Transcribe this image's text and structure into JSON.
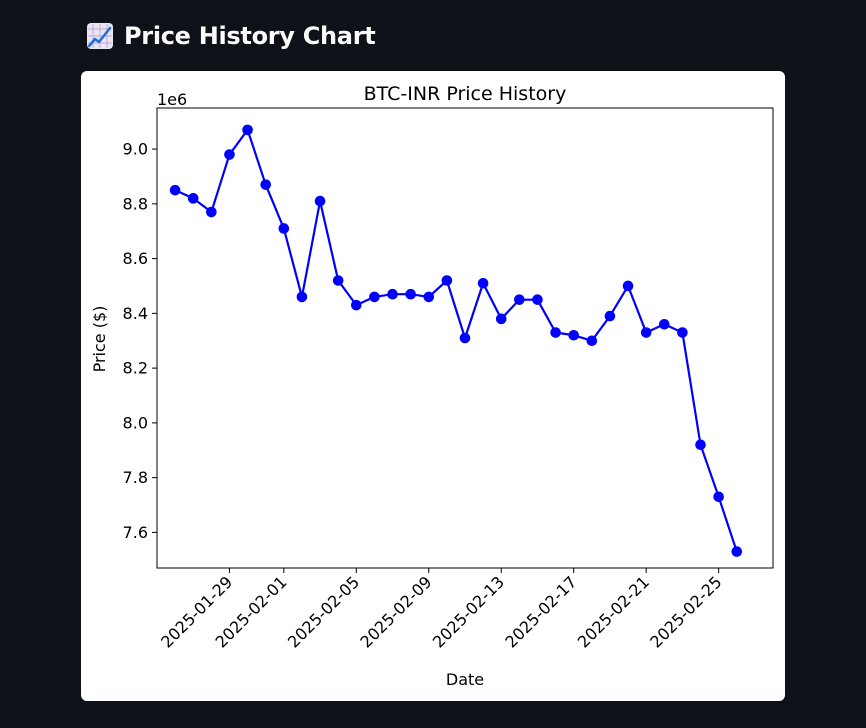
{
  "header": {
    "icon": "chart-increasing-icon",
    "title": "Price History Chart"
  },
  "chart_data": {
    "type": "line",
    "title": "BTC-INR Price History",
    "xlabel": "Date",
    "ylabel": "Price ($)",
    "y_scale_label": "1e6",
    "x_ticks": [
      "2025-01-29",
      "2025-02-01",
      "2025-02-05",
      "2025-02-09",
      "2025-02-13",
      "2025-02-17",
      "2025-02-21",
      "2025-02-25"
    ],
    "y_ticks": [
      "7.6",
      "7.8",
      "8.0",
      "8.2",
      "8.4",
      "8.6",
      "8.8",
      "9.0"
    ],
    "xlim": [
      "2025-01-25",
      "2025-02-28"
    ],
    "ylim": [
      7.47,
      9.15
    ],
    "grid": false,
    "series": [
      {
        "color": "#0000ff",
        "marker": "circle",
        "points": [
          {
            "x": "2025-01-26",
            "y": 8.85
          },
          {
            "x": "2025-01-27",
            "y": 8.82
          },
          {
            "x": "2025-01-28",
            "y": 8.77
          },
          {
            "x": "2025-01-29",
            "y": 8.98
          },
          {
            "x": "2025-01-30",
            "y": 9.07
          },
          {
            "x": "2025-01-31",
            "y": 8.87
          },
          {
            "x": "2025-02-01",
            "y": 8.71
          },
          {
            "x": "2025-02-02",
            "y": 8.46
          },
          {
            "x": "2025-02-03",
            "y": 8.81
          },
          {
            "x": "2025-02-04",
            "y": 8.52
          },
          {
            "x": "2025-02-05",
            "y": 8.43
          },
          {
            "x": "2025-02-06",
            "y": 8.46
          },
          {
            "x": "2025-02-07",
            "y": 8.47
          },
          {
            "x": "2025-02-08",
            "y": 8.47
          },
          {
            "x": "2025-02-09",
            "y": 8.46
          },
          {
            "x": "2025-02-10",
            "y": 8.52
          },
          {
            "x": "2025-02-11",
            "y": 8.31
          },
          {
            "x": "2025-02-12",
            "y": 8.51
          },
          {
            "x": "2025-02-13",
            "y": 8.38
          },
          {
            "x": "2025-02-14",
            "y": 8.45
          },
          {
            "x": "2025-02-15",
            "y": 8.45
          },
          {
            "x": "2025-02-16",
            "y": 8.33
          },
          {
            "x": "2025-02-17",
            "y": 8.32
          },
          {
            "x": "2025-02-18",
            "y": 8.3
          },
          {
            "x": "2025-02-19",
            "y": 8.39
          },
          {
            "x": "2025-02-20",
            "y": 8.5
          },
          {
            "x": "2025-02-21",
            "y": 8.33
          },
          {
            "x": "2025-02-22",
            "y": 8.36
          },
          {
            "x": "2025-02-23",
            "y": 8.33
          },
          {
            "x": "2025-02-24",
            "y": 7.92
          },
          {
            "x": "2025-02-25",
            "y": 7.73
          },
          {
            "x": "2025-02-26",
            "y": 7.53
          }
        ]
      }
    ]
  }
}
